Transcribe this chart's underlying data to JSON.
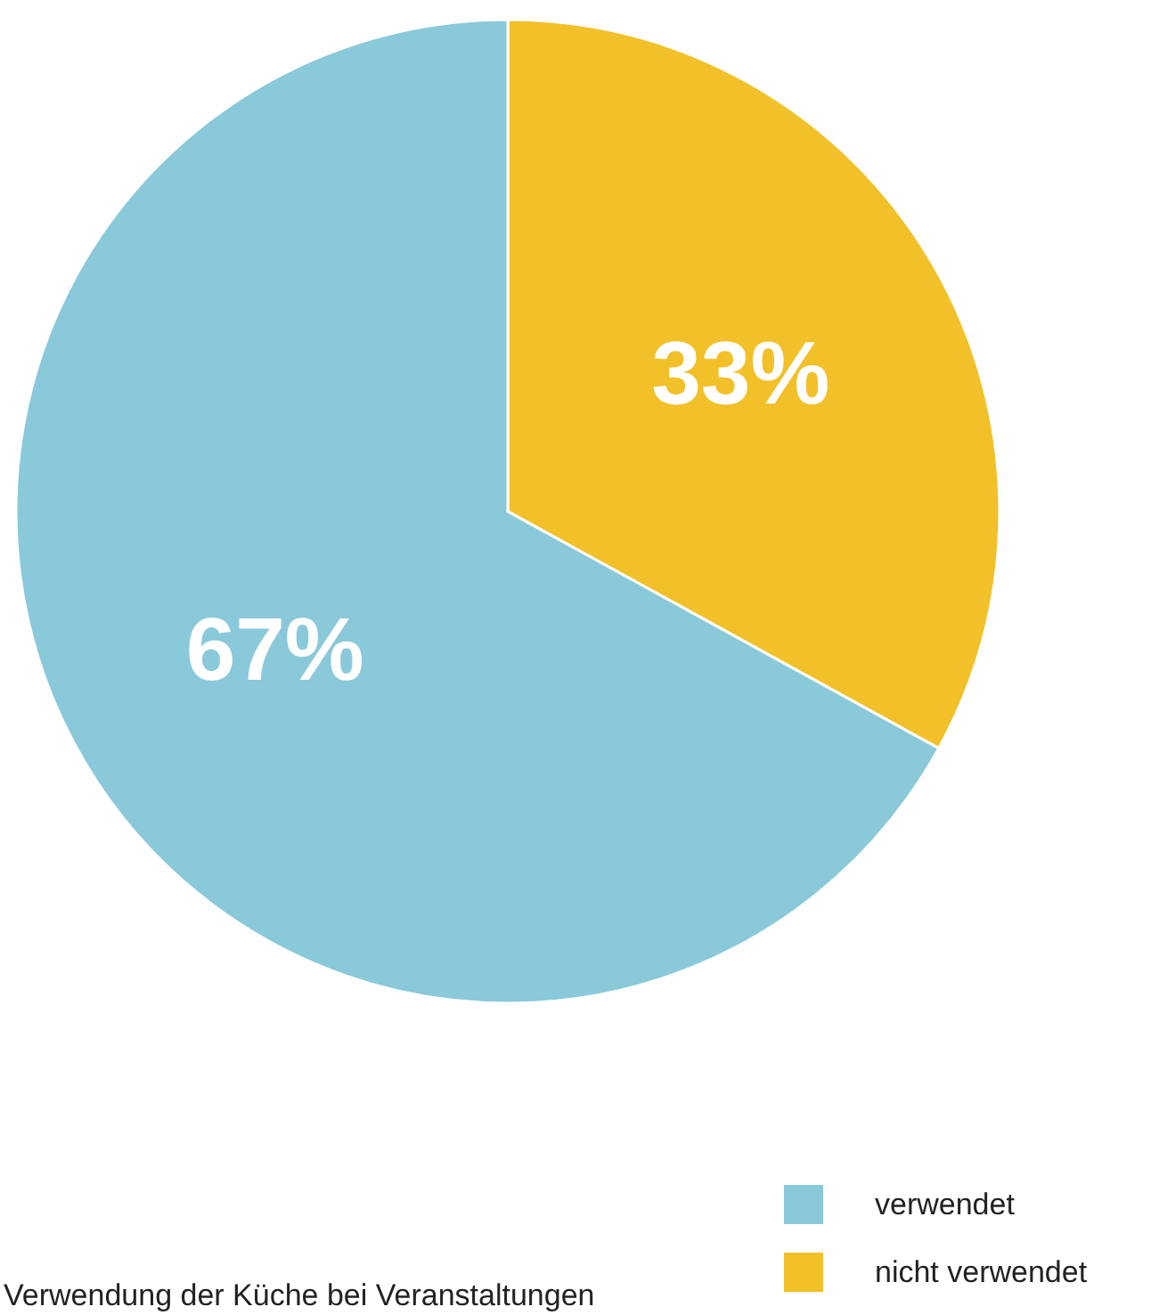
{
  "chart_data": {
    "type": "pie",
    "title": "Verwendung der Küche bei Veranstaltungen",
    "categories": [
      "verwendet",
      "nicht verwendet"
    ],
    "values": [
      67,
      33
    ],
    "colors": [
      "#8ac9da",
      "#f2c029"
    ],
    "value_labels": [
      "67%",
      "33%"
    ],
    "legend": "bottom right"
  }
}
